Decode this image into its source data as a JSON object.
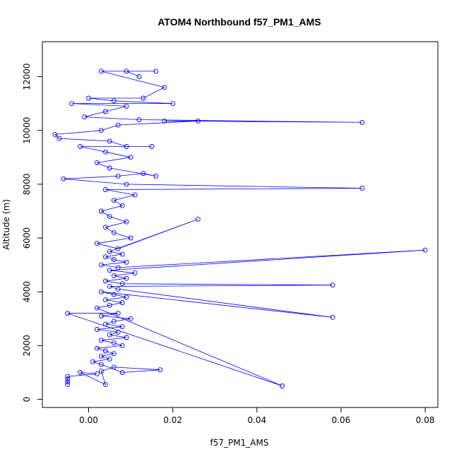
{
  "chart_data": {
    "type": "scatter",
    "title": "ATOM4 Northbound f57_PM1_AMS",
    "xlabel": "f57_PM1_AMS",
    "ylabel": "Altitude (m)",
    "xlim": [
      -0.011,
      0.083
    ],
    "ylim": [
      -300,
      13300
    ],
    "x_ticks": [
      0.0,
      0.02,
      0.04,
      0.06,
      0.08
    ],
    "x_tick_labels": [
      "0.00",
      "0.02",
      "0.04",
      "0.06",
      "0.08"
    ],
    "y_ticks": [
      0,
      2000,
      4000,
      6000,
      8000,
      10000,
      12000
    ],
    "y_tick_labels": [
      "0",
      "2000",
      "4000",
      "6000",
      "8000",
      "10000",
      "12000"
    ],
    "grid": false,
    "legend": "none",
    "marker": "open-circle",
    "line": true,
    "color": "#0000ff",
    "series": [
      {
        "values_xy": [
          [
            -0.005,
            550
          ],
          [
            -0.005,
            650
          ],
          [
            -0.005,
            750
          ],
          [
            -0.005,
            850
          ],
          [
            0.002,
            950
          ],
          [
            -0.002,
            1000
          ],
          [
            0.004,
            550
          ],
          [
            0.003,
            1050
          ],
          [
            0.006,
            1200
          ],
          [
            0.017,
            1100
          ],
          [
            0.008,
            1000
          ],
          [
            0.003,
            1300
          ],
          [
            0.001,
            1400
          ],
          [
            0.005,
            1500
          ],
          [
            0.003,
            1600
          ],
          [
            0.006,
            1700
          ],
          [
            0.004,
            1800
          ],
          [
            0.002,
            1900
          ],
          [
            0.008,
            2000
          ],
          [
            0.006,
            2100
          ],
          [
            0.003,
            2200
          ],
          [
            0.009,
            2300
          ],
          [
            0.005,
            2400
          ],
          [
            0.007,
            2500
          ],
          [
            0.002,
            2600
          ],
          [
            0.008,
            2700
          ],
          [
            0.004,
            2800
          ],
          [
            0.006,
            2900
          ],
          [
            0.01,
            3000
          ],
          [
            0.003,
            3100
          ],
          [
            0.007,
            3200
          ],
          [
            -0.005,
            3200
          ],
          [
            0.046,
            500
          ],
          [
            0.002,
            3400
          ],
          [
            0.005,
            3500
          ],
          [
            0.008,
            3600
          ],
          [
            0.004,
            3700
          ],
          [
            0.009,
            3800
          ],
          [
            0.006,
            3900
          ],
          [
            0.003,
            4000
          ],
          [
            0.058,
            3050
          ],
          [
            0.007,
            4100
          ],
          [
            0.005,
            4200
          ],
          [
            0.058,
            4250
          ],
          [
            0.008,
            4300
          ],
          [
            0.004,
            4400
          ],
          [
            0.009,
            4500
          ],
          [
            0.006,
            4600
          ],
          [
            0.011,
            4700
          ],
          [
            0.005,
            4800
          ],
          [
            0.08,
            5550
          ],
          [
            0.007,
            4900
          ],
          [
            0.003,
            5000
          ],
          [
            0.009,
            5100
          ],
          [
            0.006,
            5200
          ],
          [
            0.004,
            5300
          ],
          [
            0.008,
            5400
          ],
          [
            0.005,
            5500
          ],
          [
            0.026,
            6700
          ],
          [
            0.007,
            5600
          ],
          [
            0.002,
            5800
          ],
          [
            0.01,
            6000
          ],
          [
            0.006,
            6200
          ],
          [
            0.004,
            6400
          ],
          [
            0.009,
            6600
          ],
          [
            0.005,
            6800
          ],
          [
            0.003,
            7000
          ],
          [
            0.008,
            7200
          ],
          [
            0.006,
            7400
          ],
          [
            0.011,
            7600
          ],
          [
            0.004,
            7800
          ],
          [
            0.065,
            7850
          ],
          [
            0.009,
            8000
          ],
          [
            -0.006,
            8200
          ],
          [
            0.007,
            8300
          ],
          [
            0.013,
            8400
          ],
          [
            0.016,
            8300
          ],
          [
            0.005,
            8600
          ],
          [
            0.002,
            8800
          ],
          [
            0.01,
            9000
          ],
          [
            0.004,
            9200
          ],
          [
            -0.002,
            9400
          ],
          [
            0.015,
            9400
          ],
          [
            0.009,
            9400
          ],
          [
            0.005,
            9600
          ],
          [
            -0.007,
            9700
          ],
          [
            -0.008,
            9850
          ],
          [
            0.003,
            10000
          ],
          [
            0.007,
            10200
          ],
          [
            0.026,
            10350
          ],
          [
            0.018,
            10350
          ],
          [
            0.065,
            10300
          ],
          [
            0.012,
            10400
          ],
          [
            -0.001,
            10500
          ],
          [
            0.004,
            10700
          ],
          [
            0.009,
            10900
          ],
          [
            -0.004,
            11000
          ],
          [
            0.02,
            11000
          ],
          [
            0.006,
            11100
          ],
          [
            0.0,
            11200
          ],
          [
            0.013,
            11200
          ],
          [
            0.018,
            11600
          ],
          [
            0.003,
            12200
          ],
          [
            0.016,
            12200
          ],
          [
            0.009,
            12200
          ],
          [
            0.012,
            12000
          ]
        ]
      }
    ]
  }
}
